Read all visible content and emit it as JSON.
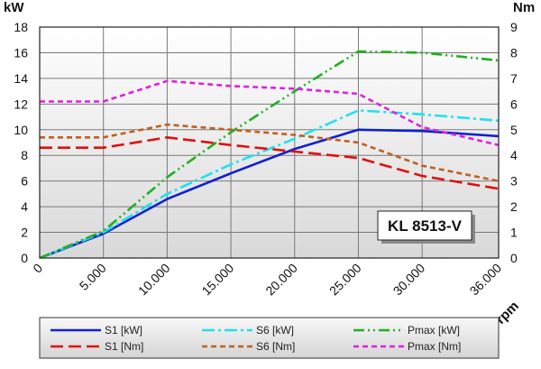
{
  "chart_data": {
    "type": "line",
    "title": "KL 8513-V",
    "xlabel": "rpm",
    "ylabel_left": "kW",
    "ylabel_right": "Nm",
    "xlim": [
      0,
      36000
    ],
    "ylim_left": [
      0,
      18
    ],
    "ylim_right": [
      0,
      9
    ],
    "grid": true,
    "legend_position": "bottom",
    "x_ticks": [
      {
        "value": 0,
        "label": "0"
      },
      {
        "value": 5000,
        "label": "5.000"
      },
      {
        "value": 10000,
        "label": "10.000"
      },
      {
        "value": 15000,
        "label": "15.000"
      },
      {
        "value": 20000,
        "label": "20.000"
      },
      {
        "value": 25000,
        "label": "25.000"
      },
      {
        "value": 30000,
        "label": "30.000"
      },
      {
        "value": 36000,
        "label": "36.000"
      }
    ],
    "y_left_ticks": [
      "0",
      "2",
      "4",
      "6",
      "8",
      "10",
      "12",
      "14",
      "16",
      "18"
    ],
    "y_right_ticks": [
      "0",
      "1",
      "2",
      "3",
      "4",
      "5",
      "6",
      "7",
      "8",
      "9"
    ],
    "series": [
      {
        "name": "S1 [kW]",
        "axis": "left",
        "color": "#1020d0",
        "dash": "solid",
        "x": [
          0,
          5000,
          10000,
          15000,
          20000,
          25000,
          30000,
          36000
        ],
        "y": [
          0,
          1.9,
          4.6,
          6.6,
          8.5,
          10.0,
          9.9,
          9.5
        ]
      },
      {
        "name": "S6 [kW]",
        "axis": "left",
        "color": "#20e0f0",
        "dash": "dashdot",
        "x": [
          0,
          5000,
          10000,
          15000,
          20000,
          25000,
          30000,
          36000
        ],
        "y": [
          0,
          2.0,
          5.0,
          7.3,
          9.3,
          11.5,
          11.2,
          10.7
        ]
      },
      {
        "name": "Pmax [kW]",
        "axis": "left",
        "color": "#20b020",
        "dash": "dashdotdot",
        "x": [
          0,
          5000,
          10000,
          15000,
          20000,
          25000,
          30000,
          36000
        ],
        "y": [
          0,
          2.1,
          6.3,
          9.8,
          13.0,
          16.1,
          16.0,
          15.4
        ]
      },
      {
        "name": "S1 [Nm]",
        "axis": "right",
        "color": "#e01010",
        "dash": "longdash",
        "x": [
          0,
          5000,
          10000,
          15000,
          20000,
          25000,
          30000,
          36000
        ],
        "y": [
          4.3,
          4.3,
          4.7,
          4.4,
          4.15,
          3.9,
          3.2,
          2.7
        ]
      },
      {
        "name": "S6 [Nm]",
        "axis": "right",
        "color": "#c06020",
        "dash": "shortdash",
        "x": [
          0,
          5000,
          10000,
          15000,
          20000,
          25000,
          30000,
          36000
        ],
        "y": [
          4.7,
          4.7,
          5.2,
          5.0,
          4.8,
          4.5,
          3.6,
          3.0
        ]
      },
      {
        "name": "Pmax [Nm]",
        "axis": "right",
        "color": "#e020e0",
        "dash": "shortdash",
        "x": [
          0,
          5000,
          10000,
          15000,
          20000,
          25000,
          30000,
          36000
        ],
        "y": [
          6.1,
          6.1,
          6.9,
          6.7,
          6.6,
          6.4,
          5.1,
          4.4
        ]
      }
    ]
  }
}
